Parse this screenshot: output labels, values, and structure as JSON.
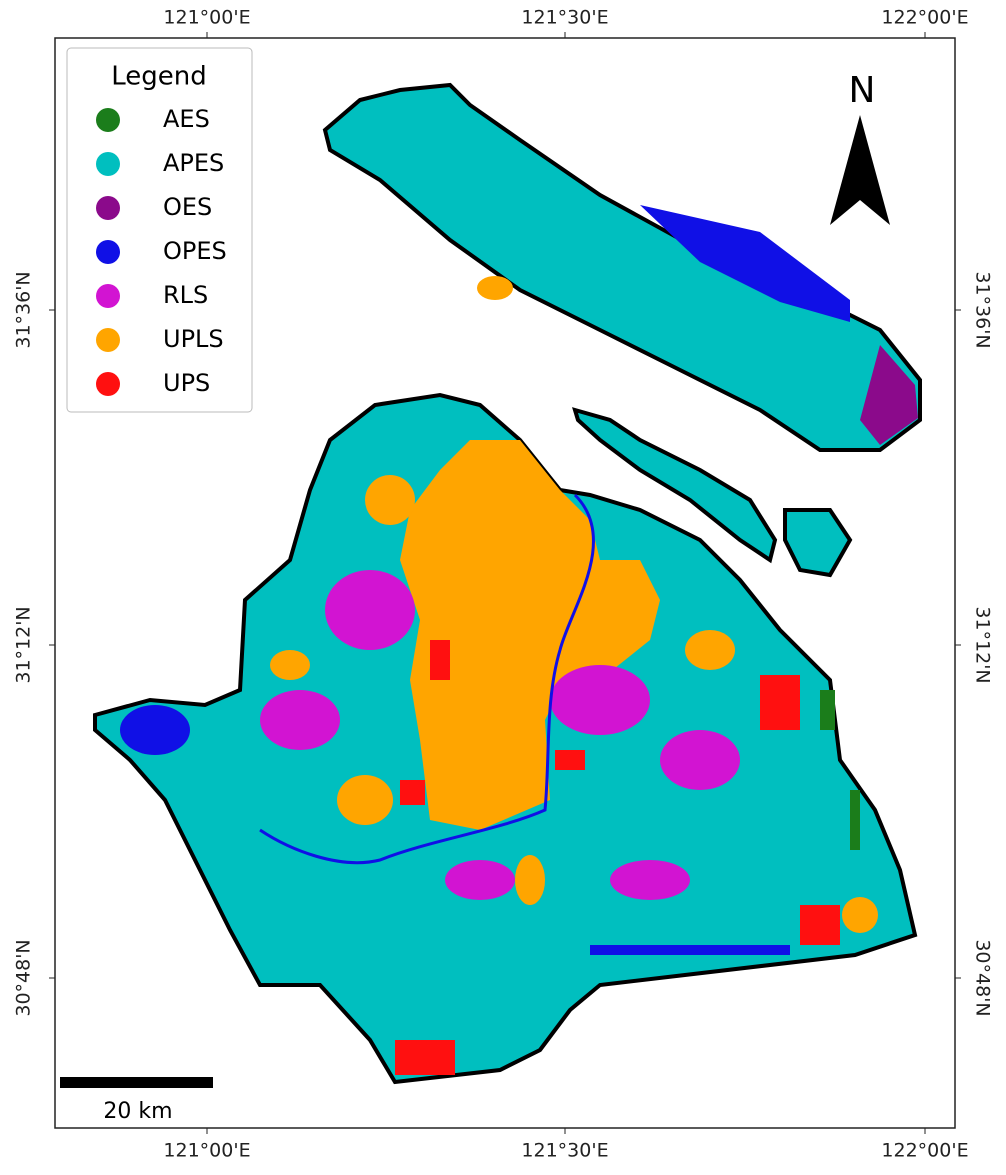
{
  "legend": {
    "title": "Legend",
    "items": [
      {
        "label": "AES",
        "color": "#1b7d1b"
      },
      {
        "label": "APES",
        "color": "#00bfbf"
      },
      {
        "label": "OES",
        "color": "#8b0a8b"
      },
      {
        "label": "OPES",
        "color": "#1010e6"
      },
      {
        "label": "RLS",
        "color": "#d214d2"
      },
      {
        "label": "UPLS",
        "color": "#ffa500"
      },
      {
        "label": "UPS",
        "color": "#ff1010"
      }
    ]
  },
  "axes": {
    "top": [
      "121°00'E",
      "121°30'E",
      "122°00'E"
    ],
    "bottom": [
      "121°00'E",
      "121°30'E",
      "122°00'E"
    ],
    "left": [
      "31°36'N",
      "31°12'N",
      "30°48'N"
    ],
    "right": [
      "31°36'N",
      "31°12'N",
      "30°48'N"
    ]
  },
  "north_arrow": "N",
  "scale_bar": "20 km"
}
